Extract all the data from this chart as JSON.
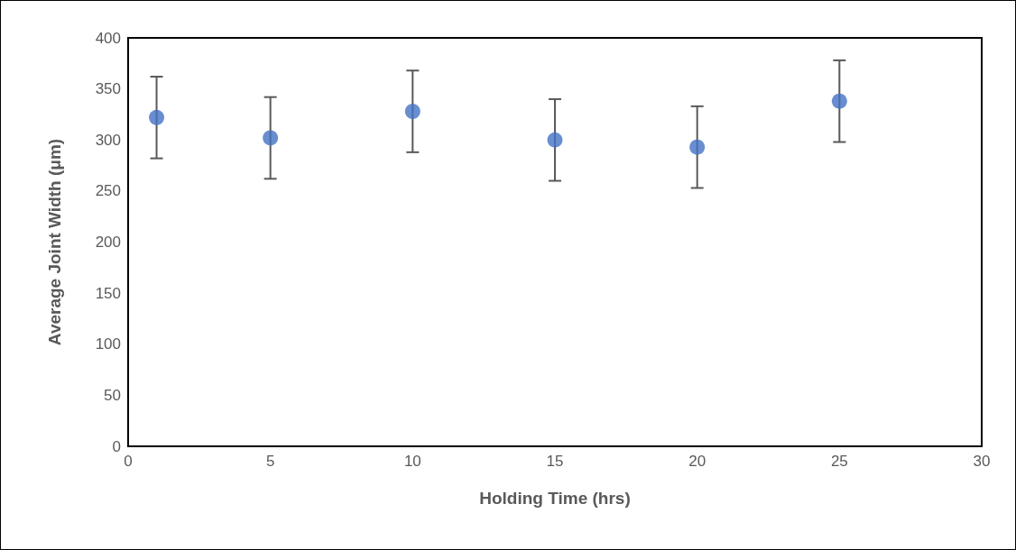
{
  "chart_data": {
    "type": "scatter",
    "xlabel": "Holding Time (hrs)",
    "ylabel": "Average Joint Width (μm)",
    "x": [
      1,
      5,
      10,
      15,
      20,
      25
    ],
    "values": [
      322,
      302,
      328,
      300,
      293,
      338
    ],
    "errors": [
      40,
      40,
      40,
      40,
      40,
      40
    ],
    "color": "#4472c4",
    "marker": "circle",
    "xlim": [
      0,
      30
    ],
    "xticks": [
      0,
      5,
      10,
      15,
      20,
      25,
      30
    ],
    "ylim": [
      0,
      400
    ],
    "yticks": [
      0,
      50,
      100,
      150,
      200,
      250,
      300,
      350,
      400
    ]
  }
}
